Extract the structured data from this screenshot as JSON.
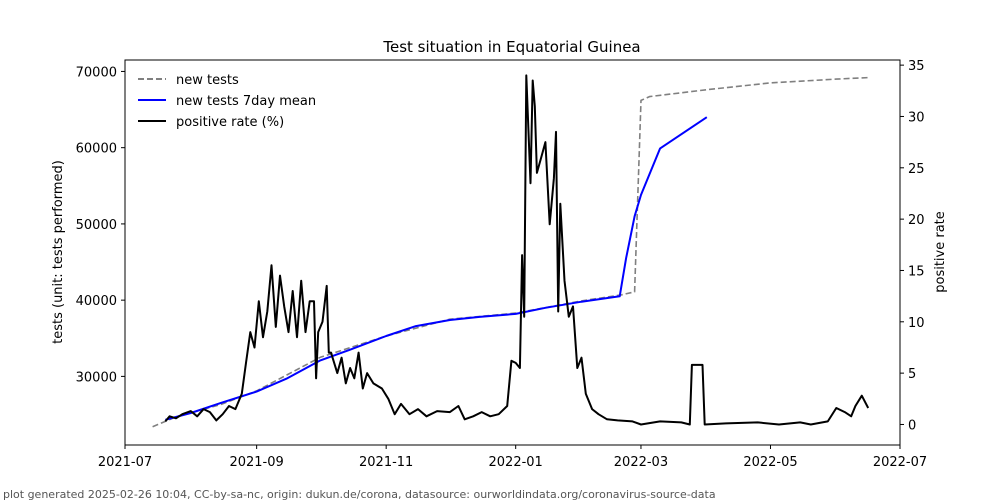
{
  "chart_data": {
    "type": "line",
    "title": "Test situation in Equatorial Guinea",
    "ylabel": "tests (unit: tests performed)",
    "y2label": "positive rate",
    "xlim": [
      "2021-07-01",
      "2022-07-01"
    ],
    "ylim": [
      21000,
      71500
    ],
    "y2lim": [
      -2,
      35.5
    ],
    "x_ticks": [
      "2021-07",
      "2021-09",
      "2021-11",
      "2022-01",
      "2022-03",
      "2022-05",
      "2022-07"
    ],
    "x_tick_dates": [
      "2021-07-01",
      "2021-09-01",
      "2021-11-01",
      "2022-01-01",
      "2022-03-01",
      "2022-05-01",
      "2022-07-01"
    ],
    "y_ticks": [
      30000,
      40000,
      50000,
      60000,
      70000
    ],
    "y2_ticks": [
      0,
      5,
      10,
      15,
      20,
      25,
      30,
      35
    ],
    "grid": false,
    "legend_position": "top-left",
    "series": [
      {
        "name": "new tests",
        "axis": "left",
        "color": "#808080",
        "style": "dashed",
        "points": [
          [
            "2021-07-14",
            23400
          ],
          [
            "2021-07-20",
            24100
          ],
          [
            "2021-07-25",
            24700
          ],
          [
            "2021-08-15",
            26300
          ],
          [
            "2021-09-01",
            28100
          ],
          [
            "2021-10-01",
            32500
          ],
          [
            "2021-11-01",
            35300
          ],
          [
            "2021-12-01",
            37500
          ],
          [
            "2022-01-01",
            38300
          ],
          [
            "2022-02-01",
            39900
          ],
          [
            "2022-02-20",
            40700
          ],
          [
            "2022-02-26",
            41100
          ],
          [
            "2022-03-01",
            66200
          ],
          [
            "2022-03-05",
            66700
          ],
          [
            "2022-04-01",
            67600
          ],
          [
            "2022-05-01",
            68500
          ],
          [
            "2022-06-01",
            69000
          ],
          [
            "2022-06-17",
            69200
          ]
        ]
      },
      {
        "name": "new tests 7day mean",
        "axis": "left",
        "color": "#0000ff",
        "style": "solid",
        "points": [
          [
            "2021-07-20",
            24300
          ],
          [
            "2021-08-01",
            25200
          ],
          [
            "2021-08-15",
            26500
          ],
          [
            "2021-09-01",
            28000
          ],
          [
            "2021-09-15",
            29700
          ],
          [
            "2021-10-01",
            32100
          ],
          [
            "2021-10-15",
            33500
          ],
          [
            "2021-11-01",
            35300
          ],
          [
            "2021-11-15",
            36600
          ],
          [
            "2021-12-01",
            37400
          ],
          [
            "2021-12-15",
            37800
          ],
          [
            "2022-01-01",
            38200
          ],
          [
            "2022-01-15",
            39000
          ],
          [
            "2022-02-01",
            39800
          ],
          [
            "2022-02-19",
            40500
          ],
          [
            "2022-02-22",
            45500
          ],
          [
            "2022-02-26",
            51000
          ],
          [
            "2022-03-01",
            53800
          ],
          [
            "2022-03-10",
            59900
          ],
          [
            "2022-04-01",
            64000
          ]
        ]
      },
      {
        "name": "positive rate (%)",
        "axis": "right",
        "color": "#000000",
        "style": "solid",
        "points": [
          [
            "2021-07-20",
            0.3
          ],
          [
            "2021-07-22",
            0.8
          ],
          [
            "2021-07-25",
            0.6
          ],
          [
            "2021-07-28",
            1.0
          ],
          [
            "2021-08-01",
            1.3
          ],
          [
            "2021-08-04",
            0.8
          ],
          [
            "2021-08-07",
            1.5
          ],
          [
            "2021-08-10",
            1.2
          ],
          [
            "2021-08-13",
            0.4
          ],
          [
            "2021-08-16",
            1.0
          ],
          [
            "2021-08-19",
            1.8
          ],
          [
            "2021-08-22",
            1.5
          ],
          [
            "2021-08-25",
            3.0
          ],
          [
            "2021-08-27",
            6.0
          ],
          [
            "2021-08-29",
            9.0
          ],
          [
            "2021-08-31",
            7.5
          ],
          [
            "2021-09-02",
            12.0
          ],
          [
            "2021-09-04",
            8.5
          ],
          [
            "2021-09-06",
            11.0
          ],
          [
            "2021-09-08",
            15.5
          ],
          [
            "2021-09-10",
            9.5
          ],
          [
            "2021-09-12",
            14.5
          ],
          [
            "2021-09-14",
            11.5
          ],
          [
            "2021-09-16",
            9.0
          ],
          [
            "2021-09-18",
            13.0
          ],
          [
            "2021-09-20",
            8.5
          ],
          [
            "2021-09-22",
            14.0
          ],
          [
            "2021-09-24",
            9.0
          ],
          [
            "2021-09-26",
            12.0
          ],
          [
            "2021-09-28",
            12.0
          ],
          [
            "2021-09-29",
            4.5
          ],
          [
            "2021-09-30",
            9.0
          ],
          [
            "2021-10-02",
            10.0
          ],
          [
            "2021-10-04",
            13.5
          ],
          [
            "2021-10-05",
            7.0
          ],
          [
            "2021-10-06",
            7.0
          ],
          [
            "2021-10-09",
            5.0
          ],
          [
            "2021-10-11",
            6.5
          ],
          [
            "2021-10-13",
            4.0
          ],
          [
            "2021-10-15",
            5.5
          ],
          [
            "2021-10-17",
            4.5
          ],
          [
            "2021-10-19",
            7.0
          ],
          [
            "2021-10-21",
            3.5
          ],
          [
            "2021-10-23",
            5.0
          ],
          [
            "2021-10-26",
            4.0
          ],
          [
            "2021-10-30",
            3.5
          ],
          [
            "2021-11-02",
            2.5
          ],
          [
            "2021-11-05",
            1.0
          ],
          [
            "2021-11-08",
            2.0
          ],
          [
            "2021-11-12",
            1.0
          ],
          [
            "2021-11-16",
            1.5
          ],
          [
            "2021-11-20",
            0.8
          ],
          [
            "2021-11-25",
            1.3
          ],
          [
            "2021-12-01",
            1.2
          ],
          [
            "2021-12-05",
            1.8
          ],
          [
            "2021-12-08",
            0.5
          ],
          [
            "2021-12-12",
            0.8
          ],
          [
            "2021-12-16",
            1.2
          ],
          [
            "2021-12-20",
            0.8
          ],
          [
            "2021-12-24",
            1.0
          ],
          [
            "2021-12-28",
            1.8
          ],
          [
            "2021-12-30",
            6.2
          ],
          [
            "2022-01-01",
            6.0
          ],
          [
            "2022-01-03",
            5.5
          ],
          [
            "2022-01-04",
            16.5
          ],
          [
            "2022-01-05",
            10.5
          ],
          [
            "2022-01-06",
            34.0
          ],
          [
            "2022-01-08",
            23.5
          ],
          [
            "2022-01-09",
            33.5
          ],
          [
            "2022-01-10",
            31.0
          ],
          [
            "2022-01-11",
            24.5
          ],
          [
            "2022-01-13",
            26.0
          ],
          [
            "2022-01-15",
            27.5
          ],
          [
            "2022-01-17",
            19.5
          ],
          [
            "2022-01-19",
            24.0
          ],
          [
            "2022-01-20",
            28.5
          ],
          [
            "2022-01-21",
            11.0
          ],
          [
            "2022-01-22",
            21.5
          ],
          [
            "2022-01-24",
            14.0
          ],
          [
            "2022-01-26",
            10.5
          ],
          [
            "2022-01-28",
            11.5
          ],
          [
            "2022-01-30",
            5.5
          ],
          [
            "2022-02-01",
            6.5
          ],
          [
            "2022-02-03",
            3.0
          ],
          [
            "2022-02-06",
            1.5
          ],
          [
            "2022-02-09",
            1.0
          ],
          [
            "2022-02-13",
            0.5
          ],
          [
            "2022-02-18",
            0.4
          ],
          [
            "2022-02-25",
            0.3
          ],
          [
            "2022-03-01",
            0.0
          ],
          [
            "2022-03-10",
            0.3
          ],
          [
            "2022-03-20",
            0.2
          ],
          [
            "2022-03-24",
            0.0
          ],
          [
            "2022-03-25",
            5.8
          ],
          [
            "2022-03-30",
            5.8
          ],
          [
            "2022-03-31",
            0.0
          ],
          [
            "2022-04-10",
            0.1
          ],
          [
            "2022-04-25",
            0.2
          ],
          [
            "2022-05-05",
            0.0
          ],
          [
            "2022-05-15",
            0.2
          ],
          [
            "2022-05-20",
            0.0
          ],
          [
            "2022-05-28",
            0.3
          ],
          [
            "2022-06-01",
            1.6
          ],
          [
            "2022-06-05",
            1.2
          ],
          [
            "2022-06-08",
            0.8
          ],
          [
            "2022-06-10",
            1.8
          ],
          [
            "2022-06-13",
            2.8
          ],
          [
            "2022-06-16",
            1.6
          ]
        ]
      }
    ]
  },
  "footer": "plot generated 2025-02-26 10:04, CC-by-sa-nc, origin: dukun.de/corona, datasource: ourworldindata.org/coronavirus-source-data"
}
